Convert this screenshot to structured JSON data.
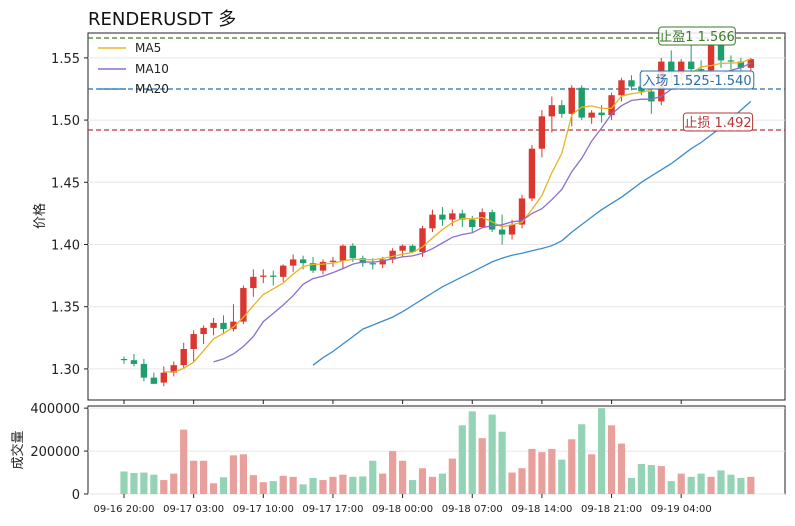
{
  "chart_data": {
    "type": "candlestick",
    "title": "RENDERUSDT 多",
    "ylabel": "价格",
    "volume_ylabel": "成交量",
    "ylim": [
      1.275,
      1.57
    ],
    "volume_ylim": [
      0,
      410000
    ],
    "y_ticks": [
      "1.30",
      "1.35",
      "1.40",
      "1.45",
      "1.50",
      "1.55"
    ],
    "volume_ticks": [
      "0",
      "200000",
      "400000"
    ],
    "x_ticks": [
      "09-16 20:00",
      "09-17 03:00",
      "09-17 10:00",
      "09-17 17:00",
      "09-18 00:00",
      "09-18 07:00",
      "09-18 14:00",
      "09-18 21:00",
      "09-19 04:00"
    ],
    "legend": [
      "MA5",
      "MA10",
      "MA20"
    ],
    "legend_position": "top-left",
    "grid": true,
    "colors": {
      "up": "#d9372f",
      "down": "#1e9e6a",
      "up_volume": "#e8a09c",
      "down_volume": "#94d3b5",
      "ma5": "#e8b422",
      "ma10": "#8a6fcf",
      "ma20": "#3a8ccc",
      "take_profit": "#3d7a2a",
      "entry": "#2a6fa6",
      "stop_loss": "#b3383b"
    },
    "levels": [
      {
        "label": "止盈1 1.566",
        "value": 1.566,
        "color_key": "take_profit"
      },
      {
        "label": "入场 1.525-1.540",
        "value": 1.525,
        "color_key": "entry"
      },
      {
        "label": "止损 1.492",
        "value": 1.492,
        "color_key": "stop_loss"
      }
    ],
    "candles": [
      [
        1.308,
        1.31,
        1.304,
        1.307
      ],
      [
        1.307,
        1.312,
        1.302,
        1.304
      ],
      [
        1.304,
        1.308,
        1.29,
        1.293
      ],
      [
        1.293,
        1.297,
        1.288,
        1.288
      ],
      [
        1.289,
        1.302,
        1.286,
        1.297
      ],
      [
        1.297,
        1.306,
        1.294,
        1.303
      ],
      [
        1.303,
        1.321,
        1.3,
        1.316
      ],
      [
        1.316,
        1.331,
        1.306,
        1.328
      ],
      [
        1.328,
        1.335,
        1.32,
        1.333
      ],
      [
        1.333,
        1.341,
        1.327,
        1.337
      ],
      [
        1.337,
        1.343,
        1.328,
        1.332
      ],
      [
        1.332,
        1.352,
        1.33,
        1.338
      ],
      [
        1.338,
        1.367,
        1.336,
        1.365
      ],
      [
        1.365,
        1.38,
        1.358,
        1.374
      ],
      [
        1.374,
        1.38,
        1.369,
        1.375
      ],
      [
        1.375,
        1.379,
        1.367,
        1.374
      ],
      [
        1.374,
        1.384,
        1.37,
        1.383
      ],
      [
        1.383,
        1.392,
        1.378,
        1.388
      ],
      [
        1.388,
        1.391,
        1.38,
        1.385
      ],
      [
        1.385,
        1.39,
        1.377,
        1.379
      ],
      [
        1.379,
        1.388,
        1.376,
        1.386
      ],
      [
        1.386,
        1.39,
        1.382,
        1.387
      ],
      [
        1.387,
        1.4,
        1.38,
        1.399
      ],
      [
        1.399,
        1.401,
        1.386,
        1.389
      ],
      [
        1.389,
        1.391,
        1.382,
        1.385
      ],
      [
        1.385,
        1.389,
        1.38,
        1.384
      ],
      [
        1.384,
        1.39,
        1.381,
        1.388
      ],
      [
        1.388,
        1.397,
        1.385,
        1.395
      ],
      [
        1.395,
        1.4,
        1.39,
        1.399
      ],
      [
        1.399,
        1.4,
        1.393,
        1.394
      ],
      [
        1.394,
        1.415,
        1.39,
        1.413
      ],
      [
        1.413,
        1.428,
        1.41,
        1.424
      ],
      [
        1.424,
        1.43,
        1.415,
        1.42
      ],
      [
        1.42,
        1.428,
        1.415,
        1.425
      ],
      [
        1.425,
        1.428,
        1.414,
        1.42
      ],
      [
        1.42,
        1.423,
        1.41,
        1.414
      ],
      [
        1.414,
        1.429,
        1.413,
        1.426
      ],
      [
        1.426,
        1.428,
        1.41,
        1.412
      ],
      [
        1.412,
        1.424,
        1.4,
        1.408
      ],
      [
        1.408,
        1.42,
        1.404,
        1.416
      ],
      [
        1.416,
        1.44,
        1.413,
        1.437
      ],
      [
        1.437,
        1.48,
        1.435,
        1.477
      ],
      [
        1.477,
        1.508,
        1.47,
        1.503
      ],
      [
        1.503,
        1.519,
        1.49,
        1.512
      ],
      [
        1.512,
        1.516,
        1.502,
        1.505
      ],
      [
        1.505,
        1.528,
        1.495,
        1.526
      ],
      [
        1.526,
        1.528,
        1.5,
        1.502
      ],
      [
        1.502,
        1.508,
        1.497,
        1.506
      ],
      [
        1.506,
        1.512,
        1.498,
        1.504
      ],
      [
        1.504,
        1.522,
        1.5,
        1.52
      ],
      [
        1.52,
        1.534,
        1.515,
        1.532
      ],
      [
        1.532,
        1.536,
        1.524,
        1.527
      ],
      [
        1.527,
        1.54,
        1.52,
        1.523
      ],
      [
        1.523,
        1.53,
        1.505,
        1.515
      ],
      [
        1.515,
        1.55,
        1.512,
        1.547
      ],
      [
        1.547,
        1.556,
        1.53,
        1.538
      ],
      [
        1.538,
        1.549,
        1.532,
        1.547
      ],
      [
        1.547,
        1.56,
        1.536,
        1.541
      ],
      [
        1.541,
        1.548,
        1.533,
        1.54
      ],
      [
        1.54,
        1.562,
        1.538,
        1.56
      ],
      [
        1.56,
        1.561,
        1.542,
        1.548
      ],
      [
        1.548,
        1.552,
        1.541,
        1.547
      ],
      [
        1.547,
        1.55,
        1.538,
        1.542
      ],
      [
        1.542,
        1.55,
        1.538,
        1.549
      ]
    ],
    "volume": [
      105000,
      98000,
      100000,
      90000,
      65000,
      95000,
      300000,
      155000,
      155000,
      50000,
      78000,
      180000,
      185000,
      88000,
      55000,
      60000,
      85000,
      80000,
      45000,
      75000,
      65000,
      80000,
      90000,
      80000,
      82000,
      155000,
      95000,
      200000,
      155000,
      65000,
      120000,
      80000,
      95000,
      165000,
      320000,
      385000,
      260000,
      370000,
      290000,
      100000,
      120000,
      210000,
      195000,
      210000,
      160000,
      255000,
      325000,
      185000,
      400000,
      320000,
      235000,
      75000,
      140000,
      135000,
      130000,
      60000,
      95000,
      80000,
      95000,
      80000,
      110000,
      90000,
      75000,
      80000
    ],
    "ma5": [
      null,
      null,
      null,
      null,
      1.2978,
      1.2974,
      1.3004,
      1.3054,
      1.3146,
      1.3242,
      1.3286,
      1.3336,
      1.3415,
      1.3508,
      1.3598,
      1.3644,
      1.369,
      1.3762,
      1.3822,
      1.384,
      1.3842,
      1.385,
      1.3868,
      1.388,
      1.388,
      1.3876,
      1.3888,
      1.3904,
      1.3922,
      1.3936,
      1.398,
      1.4052,
      1.412,
      1.4176,
      1.421,
      1.4206,
      1.4218,
      1.4182,
      1.4142,
      1.4158,
      1.4178,
      1.4282,
      1.4394,
      1.4576,
      1.4732,
      1.5042,
      1.5104,
      1.5114,
      1.5094,
      1.5094,
      1.5192,
      1.5212,
      1.5222,
      1.5244,
      1.5286,
      1.5304,
      1.534,
      1.5376,
      1.5428,
      1.5438,
      1.5456,
      1.5458,
      1.5462,
      1.5492
    ],
    "ma10": [
      null,
      null,
      null,
      null,
      null,
      null,
      null,
      null,
      null,
      1.3056,
      1.308,
      1.312,
      1.318,
      1.326,
      1.338,
      1.3446,
      1.3514,
      1.3588,
      1.368,
      1.3726,
      1.3746,
      1.3774,
      1.3806,
      1.3842,
      1.386,
      1.3858,
      1.3868,
      1.3884,
      1.39,
      1.3908,
      1.393,
      1.3966,
      1.4012,
      1.4058,
      1.408,
      1.4094,
      1.4136,
      1.415,
      1.4158,
      1.4182,
      1.4192,
      1.425,
      1.4288,
      1.436,
      1.4442,
      1.4586,
      1.4692,
      1.483,
      1.4936,
      1.5048,
      1.5116,
      1.5158,
      1.5168,
      1.5168,
      1.519,
      1.5248,
      1.5276,
      1.53,
      1.5336,
      1.5362,
      1.5372,
      1.54,
      1.542,
      1.5458
    ],
    "ma20": [
      null,
      null,
      null,
      null,
      null,
      null,
      null,
      null,
      null,
      null,
      null,
      null,
      null,
      null,
      null,
      null,
      null,
      null,
      null,
      1.303,
      1.309,
      1.314,
      1.32,
      1.326,
      1.332,
      1.3352,
      1.3384,
      1.3416,
      1.346,
      1.351,
      1.356,
      1.361,
      1.366,
      1.37,
      1.374,
      1.378,
      1.382,
      1.386,
      1.389,
      1.3914,
      1.393,
      1.395,
      1.3968,
      1.399,
      1.403,
      1.41,
      1.416,
      1.422,
      1.428,
      1.433,
      1.438,
      1.444,
      1.45,
      1.455,
      1.46,
      1.465,
      1.471,
      1.477,
      1.482,
      1.488,
      1.494,
      1.501,
      1.508,
      1.515
    ]
  }
}
